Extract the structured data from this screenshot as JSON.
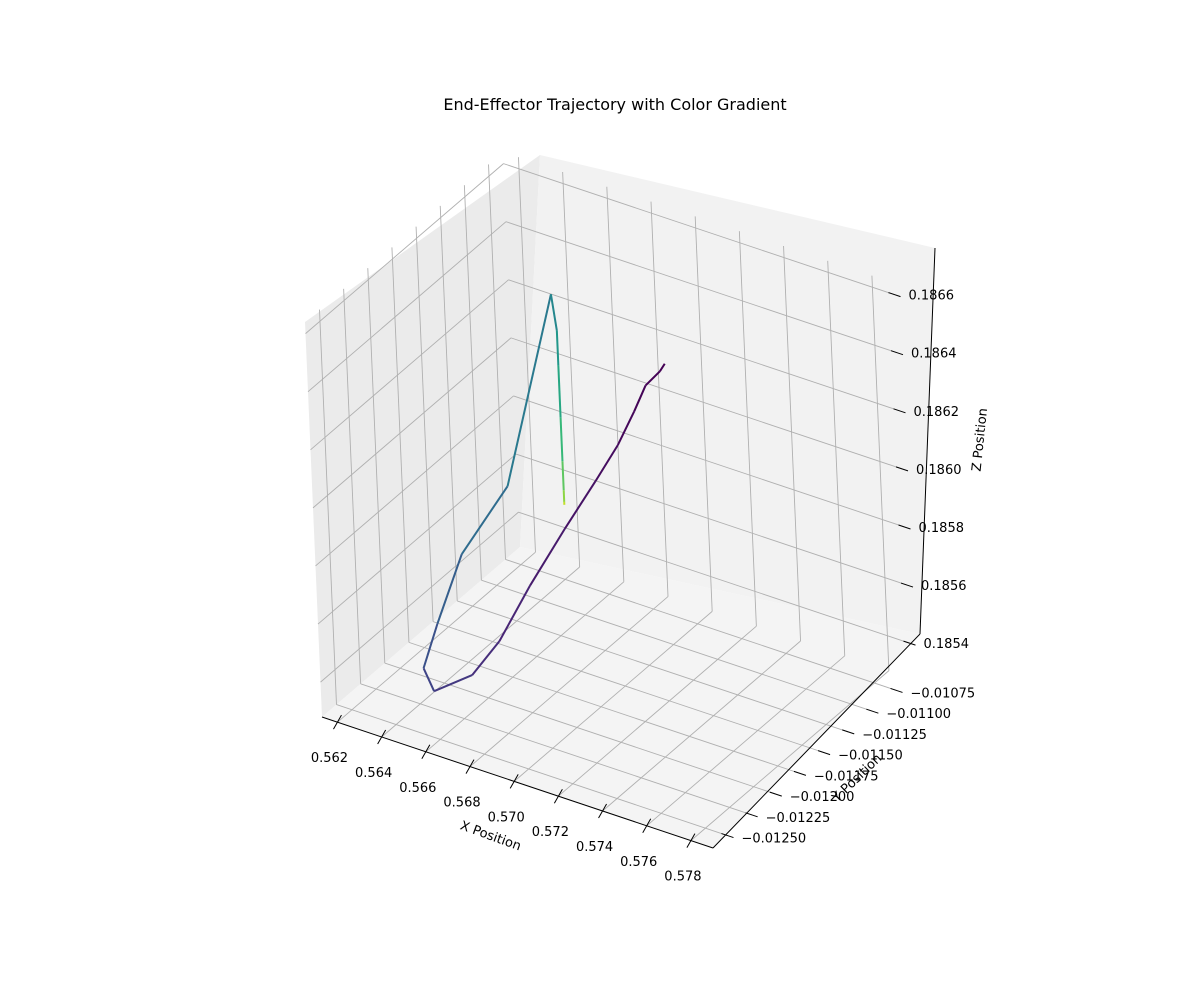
{
  "chart_data": {
    "type": "line3d",
    "title": "End-Effector Trajectory with Color Gradient",
    "xlabel": "X Position",
    "ylabel": "Y Position",
    "zlabel": "Z Position",
    "grid": true,
    "colormap": "viridis",
    "colors": {
      "pane_left": "#ebebeb",
      "pane_back": "#f2f2f2",
      "pane_floor": "#f4f4f4",
      "grid": "#b0b0b0",
      "axis": "#000000"
    },
    "xlim": [
      0.5613,
      0.579
    ],
    "ylim": [
      -0.01265,
      -0.0106
    ],
    "zlim": [
      0.18528,
      0.18664
    ],
    "xticks": [
      0.562,
      0.564,
      0.566,
      0.568,
      0.57,
      0.572,
      0.574,
      0.576,
      0.578
    ],
    "xtick_labels": [
      "0.562",
      "0.564",
      "0.566",
      "0.568",
      "0.570",
      "0.572",
      "0.574",
      "0.576",
      "0.578"
    ],
    "yticks": [
      -0.0125,
      -0.01225,
      -0.012,
      -0.01175,
      -0.0115,
      -0.01125,
      -0.011,
      -0.01075
    ],
    "ytick_labels": [
      "−0.01250",
      "−0.01225",
      "−0.01200",
      "−0.01175",
      "−0.01150",
      "−0.01125",
      "−0.01100",
      "−0.01075"
    ],
    "zticks": [
      0.1854,
      0.1856,
      0.1858,
      0.186,
      0.1862,
      0.1864,
      0.1866
    ],
    "ztick_labels": [
      "0.1854",
      "0.1856",
      "0.1858",
      "0.1860",
      "0.1862",
      "0.1864",
      "0.1866"
    ],
    "series": [
      {
        "x": [
          0.569,
          0.5689,
          0.5684,
          0.5681,
          0.5677,
          0.5672,
          0.5664,
          0.5656,
          0.565,
          0.5646,
          0.5642,
          0.5639,
          0.5638,
          0.5639,
          0.5643,
          0.5646,
          0.5648,
          0.5648,
          0.5648,
          0.5648,
          0.5648,
          0.5648,
          0.5648,
          0.5648
        ],
        "y": [
          -0.01075,
          -0.01078,
          -0.01082,
          -0.01088,
          -0.01097,
          -0.0111,
          -0.01125,
          -0.01145,
          -0.01165,
          -0.01185,
          -0.01215,
          -0.01218,
          -0.012,
          -0.01175,
          -0.01135,
          -0.0109,
          -0.0109,
          -0.0109,
          -0.0109,
          -0.0109,
          -0.0109,
          -0.0109,
          -0.0109,
          -0.0109
        ],
        "z": [
          0.18615,
          0.18613,
          0.18608,
          0.186,
          0.1859,
          0.1858,
          0.18566,
          0.1855,
          0.18535,
          0.18528,
          0.1853,
          0.18538,
          0.18548,
          0.18565,
          0.18578,
          0.18632,
          0.1862,
          0.18608,
          0.1859,
          0.18575,
          0.18565,
          0.18561,
          0.1856,
          0.1856
        ]
      }
    ]
  }
}
